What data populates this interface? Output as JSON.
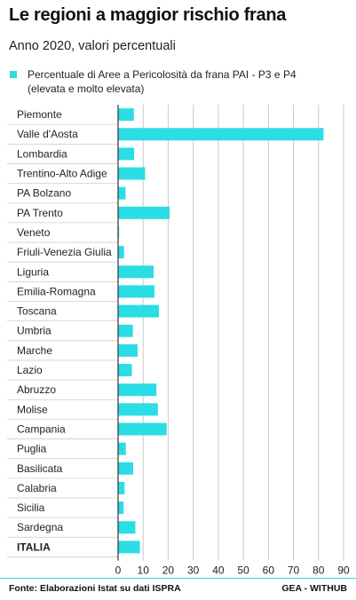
{
  "header": {
    "title": "Le regioni a maggior rischio frana",
    "subtitle": "Anno 2020, valori percentuali"
  },
  "legend": {
    "line1": "Percentuale di Aree a Pericolosità da frana PAI - P3 e P4",
    "line2": "(elevata e molto elevata)"
  },
  "footer": {
    "source": "Fonte: Elaborazioni Istat su dati ISPRA",
    "credit": "GEA - WITHUB"
  },
  "colors": {
    "bar": "#2bdde4",
    "grid": "#c8c8c8",
    "axis": "#333333"
  },
  "chart_data": {
    "type": "bar",
    "orientation": "horizontal",
    "categories": [
      "Piemonte",
      "Valle d'Aosta",
      "Lombardia",
      "Trentino-Alto Adige",
      "PA Bolzano",
      "PA Trento",
      "Veneto",
      "Friuli-Venezia Giulia",
      "Liguria",
      "Emilia-Romagna",
      "Toscana",
      "Umbria",
      "Marche",
      "Lazio",
      "Abruzzo",
      "Molise",
      "Campania",
      "Puglia",
      "Basilicata",
      "Calabria",
      "Sicilia",
      "Sardegna",
      "ITALIA"
    ],
    "emphasized_category": "ITALIA",
    "series": [
      {
        "name": "Percentuale di Aree a Pericolosità da frana PAI - P3 e P4 (elevata e molto elevata)",
        "values": [
          6.3,
          82.0,
          6.4,
          10.8,
          3.0,
          20.6,
          0.4,
          2.4,
          14.2,
          14.5,
          16.3,
          5.9,
          7.8,
          5.5,
          15.3,
          15.9,
          19.4,
          3.1,
          6.0,
          2.6,
          2.2,
          6.9,
          8.7
        ]
      }
    ],
    "xticks": [
      0,
      10,
      20,
      30,
      40,
      50,
      60,
      70,
      80,
      90
    ],
    "xlim": [
      0,
      90
    ],
    "grid": true,
    "title": "Le regioni a maggior rischio frana",
    "subtitle": "Anno 2020, valori percentuali",
    "xlabel": "",
    "ylabel": "",
    "legend_position": "top"
  }
}
